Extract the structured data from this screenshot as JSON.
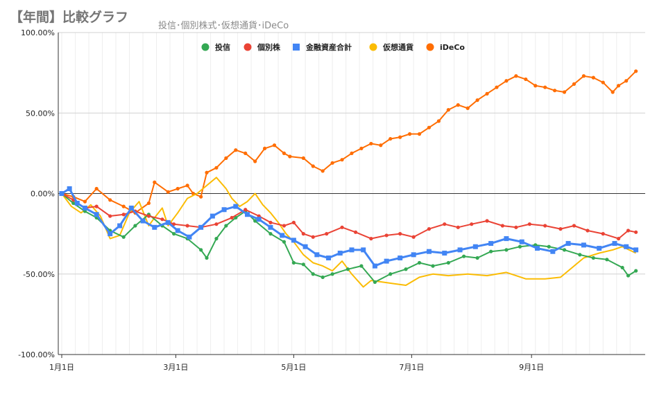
{
  "title": "【年間】比較グラフ",
  "subtitle": "投信･個別株式･仮想通貨･iDeCo",
  "chart_data": {
    "type": "line",
    "y_ticks": [
      "100.00%",
      "50.00%",
      "0.00%",
      "-50.00%",
      "-100.00%"
    ],
    "x_ticks": [
      "1月1日",
      "3月1日",
      "5月1日",
      "7月1日",
      "9月1日"
    ],
    "ylim": [
      -100,
      100
    ],
    "xlim": [
      0,
      300
    ],
    "x_tick_days": [
      0,
      59,
      120,
      181,
      243
    ],
    "y_unit": "%",
    "grid": true,
    "legend_position": "top-center",
    "series": [
      {
        "name": "投信",
        "color": "#34a853",
        "marker": "circle",
        "x": [
          0,
          6,
          12,
          18,
          25,
          32,
          38,
          45,
          52,
          58,
          65,
          72,
          75,
          80,
          85,
          90,
          95,
          100,
          108,
          115,
          120,
          125,
          130,
          135,
          140,
          148,
          155,
          162,
          170,
          178,
          185,
          192,
          200,
          208,
          215,
          222,
          230,
          237,
          245,
          252,
          260,
          268,
          275,
          282,
          290,
          293,
          297
        ],
        "y": [
          0,
          -6,
          -11,
          -15,
          -23,
          -27,
          -20,
          -13,
          -20,
          -25,
          -28,
          -35,
          -40,
          -28,
          -20,
          -15,
          -11,
          -17,
          -25,
          -30,
          -43,
          -44,
          -50,
          -52,
          -50,
          -47,
          -45,
          -55,
          -50,
          -47,
          -43,
          -45,
          -43,
          -39,
          -40,
          -36,
          -35,
          -33,
          -32,
          -33,
          -35,
          -38,
          -40,
          -41,
          -46,
          -51,
          -48
        ]
      },
      {
        "name": "個別株",
        "color": "#ea4335",
        "marker": "circle",
        "x": [
          0,
          6,
          12,
          18,
          25,
          32,
          38,
          45,
          52,
          58,
          65,
          72,
          80,
          88,
          95,
          102,
          108,
          115,
          120,
          125,
          130,
          137,
          145,
          152,
          160,
          168,
          175,
          182,
          190,
          198,
          205,
          212,
          220,
          228,
          235,
          242,
          250,
          258,
          265,
          272,
          280,
          288,
          293,
          297
        ],
        "y": [
          0,
          -4,
          -9,
          -8,
          -14,
          -13,
          -11,
          -14,
          -16,
          -19,
          -20,
          -21,
          -19,
          -15,
          -10,
          -14,
          -18,
          -20,
          -18,
          -25,
          -27,
          -25,
          -21,
          -24,
          -28,
          -26,
          -25,
          -27,
          -22,
          -19,
          -21,
          -19,
          -17,
          -20,
          -21,
          -19,
          -20,
          -22,
          -20,
          -23,
          -25,
          -28,
          -23,
          -24
        ]
      },
      {
        "name": "金融資産合計",
        "color": "#4285f4",
        "marker": "square",
        "x": [
          0,
          4,
          8,
          12,
          18,
          25,
          30,
          36,
          42,
          48,
          55,
          60,
          66,
          72,
          78,
          84,
          90,
          96,
          102,
          108,
          114,
          120,
          126,
          132,
          138,
          144,
          150,
          156,
          162,
          168,
          175,
          182,
          190,
          198,
          206,
          214,
          222,
          230,
          238,
          246,
          254,
          262,
          270,
          278,
          286,
          292,
          297
        ],
        "y": [
          0,
          3,
          -6,
          -9,
          -13,
          -25,
          -20,
          -9,
          -17,
          -21,
          -18,
          -23,
          -27,
          -21,
          -14,
          -10,
          -8,
          -13,
          -16,
          -21,
          -26,
          -29,
          -33,
          -38,
          -40,
          -37,
          -35,
          -35,
          -45,
          -42,
          -40,
          -38,
          -36,
          -37,
          -35,
          -33,
          -31,
          -28,
          -30,
          -34,
          -36,
          -31,
          -32,
          -34,
          -31,
          -33,
          -35
        ]
      },
      {
        "name": "仮想通貨",
        "color": "#fbbc04",
        "marker": "none",
        "x": [
          0,
          5,
          10,
          15,
          20,
          25,
          30,
          35,
          40,
          45,
          48,
          52,
          55,
          60,
          65,
          70,
          75,
          80,
          85,
          88,
          92,
          96,
          100,
          104,
          108,
          112,
          116,
          120,
          125,
          130,
          135,
          140,
          145,
          150,
          156,
          160,
          166,
          172,
          178,
          185,
          192,
          200,
          210,
          220,
          230,
          240,
          250,
          258,
          265,
          270,
          278,
          285,
          290,
          297
        ],
        "y": [
          0,
          -8,
          -12,
          -7,
          -14,
          -28,
          -26,
          -12,
          -5,
          -20,
          -15,
          -9,
          -20,
          -12,
          -3,
          0,
          5,
          10,
          3,
          -3,
          -8,
          -5,
          0,
          -7,
          -12,
          -18,
          -25,
          -30,
          -38,
          -43,
          -45,
          -48,
          -42,
          -50,
          -58,
          -54,
          -55,
          -56,
          -57,
          -52,
          -50,
          -51,
          -50,
          -51,
          -49,
          -53,
          -53,
          -52,
          -45,
          -40,
          -37,
          -35,
          -33,
          -37
        ]
      },
      {
        "name": "iDeCo",
        "color": "#ff6d01",
        "marker": "circle",
        "x": [
          0,
          6,
          12,
          18,
          25,
          32,
          38,
          45,
          48,
          55,
          60,
          65,
          68,
          72,
          75,
          80,
          85,
          90,
          95,
          100,
          105,
          110,
          115,
          118,
          125,
          130,
          135,
          140,
          145,
          150,
          155,
          160,
          165,
          170,
          175,
          180,
          185,
          190,
          195,
          200,
          205,
          210,
          215,
          220,
          225,
          230,
          235,
          240,
          245,
          250,
          255,
          260,
          265,
          270,
          275,
          280,
          285,
          288,
          292,
          297
        ],
        "y": [
          0,
          -2,
          -5,
          3,
          -4,
          -8,
          -12,
          -6,
          7,
          1,
          3,
          5,
          0,
          -2,
          13,
          16,
          22,
          27,
          25,
          20,
          28,
          30,
          25,
          23,
          22,
          17,
          14,
          19,
          21,
          25,
          28,
          31,
          30,
          34,
          35,
          37,
          37,
          41,
          45,
          52,
          55,
          53,
          58,
          62,
          66,
          70,
          73,
          71,
          67,
          66,
          64,
          63,
          68,
          73,
          72,
          69,
          63,
          67,
          70,
          76
        ]
      }
    ]
  }
}
